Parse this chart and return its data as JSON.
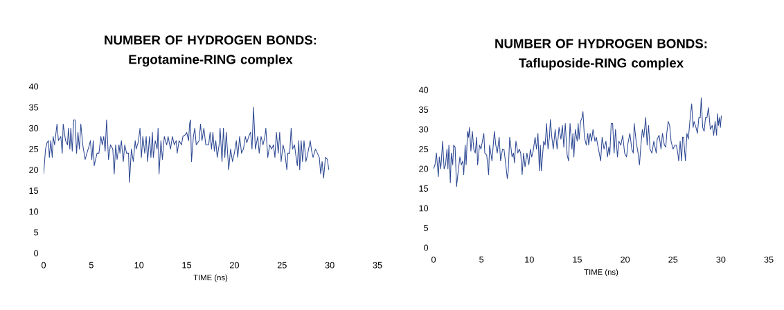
{
  "chart_data": [
    {
      "type": "line",
      "title": "NUMBER OF HYDROGEN BONDS: Ergotamine-RING complex",
      "xlabel": "TIME (ns)",
      "color": "#2f4a94",
      "xlim": [
        0,
        35
      ],
      "ylim": [
        0,
        40
      ],
      "xticks": [
        0,
        5,
        10,
        15,
        20,
        25,
        30,
        35
      ],
      "yticks": [
        0,
        5,
        10,
        15,
        20,
        25,
        30,
        35,
        40
      ],
      "x": [
        0,
        0.2,
        0.35,
        0.5,
        0.6,
        0.75,
        0.9,
        1.0,
        1.15,
        1.3,
        1.4,
        1.55,
        1.8,
        1.95,
        2.05,
        2.3,
        2.5,
        2.6,
        2.75,
        2.85,
        3.0,
        3.15,
        3.3,
        3.45,
        3.6,
        3.75,
        3.9,
        4.1,
        4.35,
        4.6,
        4.8,
        4.9,
        5.05,
        5.2,
        5.3,
        5.6,
        5.8,
        6.0,
        6.15,
        6.3,
        6.45,
        6.6,
        6.8,
        7.0,
        7.25,
        7.4,
        7.55,
        7.7,
        7.9,
        8.0,
        8.15,
        8.35,
        8.5,
        8.7,
        8.9,
        9.0,
        9.2,
        9.4,
        9.6,
        9.7,
        9.9,
        10.0,
        10.1,
        10.25,
        10.4,
        10.6,
        10.75,
        10.9,
        11.1,
        11.25,
        11.4,
        11.5,
        11.7,
        11.9,
        12.0,
        12.1,
        12.3,
        12.45,
        12.65,
        12.9,
        13.05,
        13.3,
        13.5,
        13.7,
        13.9,
        14.0,
        14.2,
        14.45,
        14.6,
        14.9,
        15.0,
        15.2,
        15.3,
        15.4,
        15.5,
        15.7,
        15.85,
        16.0,
        16.3,
        16.45,
        16.6,
        16.8,
        17.0,
        17.3,
        17.45,
        17.6,
        17.75,
        17.9,
        18.05,
        18.2,
        18.4,
        18.5,
        18.7,
        18.85,
        19.0,
        19.15,
        19.4,
        19.6,
        19.8,
        20.0,
        20.2,
        20.35,
        20.55,
        20.75,
        20.95,
        21.15,
        21.3,
        21.5,
        21.7,
        21.85,
        22.0,
        22.2,
        22.45,
        22.6,
        22.8,
        23.0,
        23.2,
        23.3,
        23.5,
        23.7,
        23.9,
        24.1,
        24.25,
        24.4,
        24.6,
        24.75,
        24.9,
        25.1,
        25.3,
        25.5,
        25.6,
        25.8,
        25.95,
        26.1,
        26.3,
        26.5,
        26.6,
        26.75,
        26.85,
        27.0,
        27.15,
        27.3,
        27.5,
        27.7,
        27.95,
        28.1,
        28.25,
        28.5,
        28.7,
        28.9,
        29.05,
        29.2,
        29.35,
        29.55,
        29.75,
        29.9
      ],
      "values": [
        19,
        25,
        26.5,
        27,
        23,
        27,
        23,
        28,
        26,
        29,
        31,
        27,
        28,
        24,
        31,
        27,
        26,
        30,
        25,
        30,
        24.5,
        32,
        32,
        24,
        29,
        25,
        31,
        26,
        22.5,
        24.5,
        26,
        27,
        22.5,
        27,
        21,
        24,
        24,
        28,
        26,
        28,
        24.5,
        32,
        22.5,
        26,
        25,
        19,
        26,
        22.5,
        26,
        24,
        27,
        22,
        26,
        24,
        24,
        17,
        25,
        22,
        27,
        25,
        26.5,
        28,
        30,
        23,
        28,
        24,
        28,
        22,
        28,
        23,
        29,
        23,
        27,
        25,
        30,
        19,
        27,
        22.5,
        28,
        26,
        28,
        25,
        28,
        26,
        27,
        24,
        27,
        26,
        28,
        28.5,
        29,
        27,
        31,
        32,
        22,
        28,
        30,
        26,
        27,
        31,
        27,
        30,
        26,
        26,
        29,
        25,
        29,
        24.5,
        27,
        23,
        26,
        30,
        22,
        30,
        23,
        29,
        20,
        25,
        22,
        24,
        27,
        23,
        28,
        24,
        25,
        28,
        26.5,
        28,
        29,
        25,
        35,
        25,
        28,
        24,
        28,
        26,
        28,
        30,
        23,
        26,
        25,
        26,
        23,
        29,
        24,
        29,
        22,
        26,
        24,
        20,
        24,
        24,
        30,
        25,
        26,
        22.5,
        21,
        27,
        20,
        27,
        22,
        27,
        22,
        24,
        27,
        24.5,
        23,
        25,
        24,
        23,
        19,
        22,
        18,
        23,
        22.5,
        20
      ]
    },
    {
      "type": "line",
      "title": "NUMBER OF HYDROGEN BONDS: Tafluposide-RING complex",
      "xlabel": "TIME (ns)",
      "color": "#2f4a94",
      "xlim": [
        0,
        35
      ],
      "ylim": [
        0,
        40
      ],
      "xticks": [
        0,
        5,
        10,
        15,
        20,
        25,
        30,
        35
      ],
      "yticks": [
        0,
        5,
        10,
        15,
        20,
        25,
        30,
        35,
        40
      ],
      "x": [
        0,
        0.15,
        0.3,
        0.5,
        0.6,
        0.75,
        0.95,
        1.1,
        1.25,
        1.4,
        1.5,
        1.6,
        1.75,
        1.85,
        2.0,
        2.1,
        2.25,
        2.4,
        2.6,
        2.75,
        2.9,
        3.05,
        3.15,
        3.3,
        3.4,
        3.55,
        3.65,
        3.75,
        3.9,
        4.05,
        4.2,
        4.35,
        4.5,
        4.6,
        4.8,
        4.95,
        5.1,
        5.25,
        5.35,
        5.55,
        5.75,
        5.85,
        6.1,
        6.35,
        6.5,
        6.65,
        6.85,
        7.0,
        7.2,
        7.35,
        7.5,
        7.7,
        7.8,
        7.95,
        8.2,
        8.35,
        8.45,
        8.6,
        8.8,
        8.95,
        9.1,
        9.25,
        9.4,
        9.55,
        9.75,
        9.95,
        10.1,
        10.25,
        10.4,
        10.6,
        10.75,
        10.9,
        11.05,
        11.15,
        11.25,
        11.5,
        11.65,
        11.8,
        11.95,
        12.1,
        12.2,
        12.35,
        12.5,
        12.7,
        12.9,
        13.1,
        13.3,
        13.45,
        13.6,
        13.75,
        13.95,
        14.1,
        14.25,
        14.45,
        14.55,
        14.65,
        14.8,
        15.0,
        15.1,
        15.2,
        15.35,
        15.5,
        15.6,
        15.75,
        15.95,
        16.1,
        16.2,
        16.35,
        16.5,
        16.65,
        16.85,
        17.0,
        17.1,
        17.3,
        17.45,
        17.6,
        17.8,
        18.0,
        18.15,
        18.3,
        18.4,
        18.55,
        18.7,
        18.85,
        19.0,
        19.2,
        19.35,
        19.55,
        19.75,
        19.95,
        20.15,
        20.3,
        20.5,
        20.7,
        20.85,
        20.95,
        21.15,
        21.35,
        21.5,
        21.65,
        21.8,
        21.95,
        22.15,
        22.3,
        22.45,
        22.6,
        22.8,
        23.0,
        23.25,
        23.35,
        23.55,
        23.75,
        23.9,
        24.1,
        24.25,
        24.35,
        24.5,
        24.65,
        24.8,
        25.0,
        25.2,
        25.35,
        25.5,
        25.6,
        25.75,
        25.9,
        26.0,
        26.1,
        26.3,
        26.45,
        26.6,
        26.8,
        26.95,
        27.1,
        27.2,
        27.4,
        27.55,
        27.7,
        27.85,
        27.95,
        28.1,
        28.25,
        28.4,
        28.55,
        28.7,
        28.9,
        29.1,
        29.25,
        29.4,
        29.55,
        29.65,
        29.75,
        29.85,
        29.95,
        30.05
      ],
      "values": [
        20,
        21,
        24,
        18,
        23,
        20,
        27,
        20,
        21,
        25,
        20,
        26,
        16.5,
        24,
        21,
        26,
        25.5,
        15.5,
        20,
        23,
        21,
        22,
        18.5,
        26,
        21,
        29.5,
        28,
        30.5,
        24.5,
        29.5,
        25,
        24,
        28,
        21,
        26,
        25,
        27,
        29,
        24,
        23.5,
        18.5,
        26,
        22,
        29.5,
        26,
        24,
        28,
        22,
        25,
        25,
        22,
        17.5,
        19.5,
        28,
        23,
        24,
        21.5,
        27,
        24,
        25,
        24,
        18.5,
        24,
        20.5,
        24,
        21,
        25,
        23,
        24.5,
        28,
        25,
        29,
        19.5,
        26,
        19.5,
        27,
        26,
        31.5,
        25,
        28,
        32.5,
        28,
        25,
        30,
        25,
        30.5,
        27.5,
        31,
        25.5,
        31.5,
        23.5,
        22,
        31.5,
        25,
        29,
        23,
        30,
        27,
        31.5,
        27.5,
        32,
        33,
        34.5,
        28,
        26,
        29,
        26,
        29,
        27,
        30,
        27,
        28,
        26.5,
        24,
        22,
        28,
        25,
        27,
        23,
        25.5,
        23.5,
        31.5,
        31.5,
        24,
        30,
        23,
        27,
        26,
        28.5,
        24,
        23,
        26.5,
        29,
        25,
        24,
        31.5,
        27,
        24,
        21,
        26,
        30,
        28,
        33,
        26,
        31,
        25,
        24,
        27,
        24,
        27.5,
        28.5,
        25,
        29,
        26,
        25.5,
        29,
        32,
        31,
        27,
        25,
        26,
        26,
        24,
        22,
        27,
        22,
        28,
        28,
        22,
        29,
        27.5,
        33,
        36.5,
        30.5,
        32,
        30.5,
        29,
        33,
        33,
        38,
        30.5,
        29.5,
        33,
        33,
        35.5,
        30,
        31,
        28.5,
        32,
        28.5,
        34,
        31,
        33,
        30.5,
        33.5
      ]
    }
  ]
}
